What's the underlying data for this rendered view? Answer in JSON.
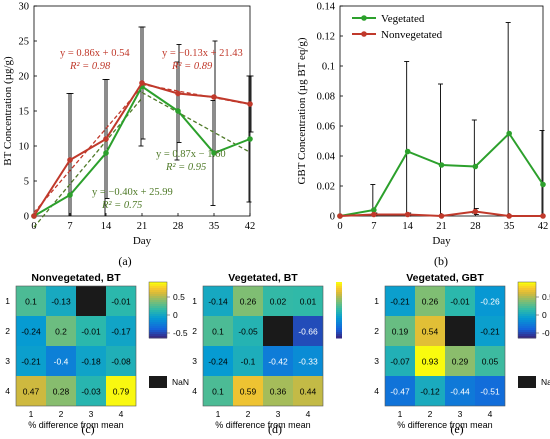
{
  "chart_data": [
    {
      "panel": "(a)",
      "type": "line",
      "xlabel": "Day",
      "ylabel": "BT Concentration (µg/g)",
      "x": [
        0,
        7,
        14,
        21,
        28,
        35,
        42
      ],
      "xlim": [
        0,
        42
      ],
      "ylim": [
        0,
        30
      ],
      "xticks": [
        "0",
        "7",
        "14",
        "21",
        "28",
        "35",
        "42"
      ],
      "yticks": [
        "0",
        "5",
        "10",
        "15",
        "20",
        "25",
        "30"
      ],
      "series": [
        {
          "color": "#2ca02c",
          "values": [
            0,
            3,
            9,
            18.5,
            15,
            9,
            11
          ],
          "err": [
            0,
            14.5,
            10.5,
            8.5,
            7,
            7.5,
            9
          ]
        },
        {
          "color": "#c0392b",
          "values": [
            0,
            8,
            11,
            19,
            17.5,
            17,
            16
          ],
          "err": [
            0,
            9.5,
            8.5,
            8,
            7,
            8,
            4
          ]
        }
      ],
      "fits": [
        {
          "color": "#c0392b",
          "x": [
            0,
            21
          ],
          "eq": "y = 0.86x + 0.54",
          "r2": "R² = 0.98"
        },
        {
          "color": "#c0392b",
          "x": [
            21,
            42
          ],
          "eq": "y = −0.13x + 21.43",
          "r2": "R² = 0.89"
        },
        {
          "color": "#4f7a28",
          "x": [
            0,
            21
          ],
          "eq": "y = 0.87x − 1.60",
          "r2": "R² = 0.95"
        },
        {
          "color": "#4f7a28",
          "x": [
            21,
            42
          ],
          "eq": "y = −0.40x + 25.99",
          "r2": "R² = 0.75"
        }
      ]
    },
    {
      "panel": "(b)",
      "type": "line",
      "xlabel": "Day",
      "ylabel": "GBT Concentration (µg BT eq/g)",
      "x": [
        0,
        7,
        14,
        21,
        28,
        35,
        42
      ],
      "xlim": [
        0,
        42
      ],
      "ylim": [
        0,
        0.14
      ],
      "xticks": [
        "0",
        "7",
        "14",
        "21",
        "28",
        "35",
        "42"
      ],
      "yticks": [
        "0",
        "0.02",
        "0.04",
        "0.06",
        "0.08",
        "0.1",
        "0.12",
        "0.14"
      ],
      "legend_position": "top-left",
      "series": [
        {
          "name": "Vegetated",
          "color": "#2ca02c",
          "values": [
            0,
            0.004,
            0.043,
            0.034,
            0.033,
            0.055,
            0.021
          ],
          "err": [
            0,
            0.017,
            0.06,
            0.054,
            0.031,
            0.074,
            0.036
          ]
        },
        {
          "name": "Nonvegetated",
          "color": "#c0392b",
          "values": [
            0,
            0.001,
            0.001,
            0,
            0.003,
            0,
            0
          ],
          "err": [
            0,
            0.001,
            0.001,
            0,
            0.002,
            0,
            0
          ]
        }
      ]
    },
    {
      "panel": "(c)",
      "type": "heatmap",
      "title": "Nonvegetated, BT",
      "xlabel": "% difference from mean",
      "rows": [
        "1",
        "2",
        "3",
        "4"
      ],
      "cols": [
        "1",
        "2",
        "3",
        "4"
      ],
      "values": [
        [
          0.1,
          -0.13,
          null,
          -0.01
        ],
        [
          -0.24,
          0.2,
          -0.01,
          -0.17
        ],
        [
          -0.21,
          -0.4,
          -0.18,
          -0.08
        ],
        [
          0.47,
          0.28,
          -0.03,
          0.79
        ]
      ],
      "labels": [
        [
          "0.1",
          "-0.13",
          "",
          "-0.01"
        ],
        [
          "-0.24",
          "0.2",
          "-0.01",
          "-0.17"
        ],
        [
          "-0.21",
          "-0.4",
          "-0.18",
          "-0.08"
        ],
        [
          "0.47",
          "0.28",
          "-0.03",
          "0.79"
        ]
      ],
      "colorbar_ticks": [
        "0.5",
        "0",
        "-0.5"
      ],
      "nan_label": "NaN"
    },
    {
      "panel": "(d)",
      "type": "heatmap",
      "title": "Vegetated, BT",
      "xlabel": "% difference from mean",
      "rows": [
        "1",
        "2",
        "3",
        "4"
      ],
      "cols": [
        "1",
        "2",
        "3",
        "4"
      ],
      "values": [
        [
          -0.14,
          0.26,
          0.02,
          0.01
        ],
        [
          0.1,
          -0.05,
          null,
          -0.66
        ],
        [
          -0.24,
          -0.1,
          -0.42,
          -0.33
        ],
        [
          0.1,
          0.59,
          0.36,
          0.44
        ]
      ],
      "labels": [
        [
          "-0.14",
          "0.26",
          "0.02",
          "0.01"
        ],
        [
          "0.1",
          "-0.05",
          "",
          "-0.66"
        ],
        [
          "-0.24",
          "-0.1",
          "-0.42",
          "-0.33"
        ],
        [
          "0.1",
          "0.59",
          "0.36",
          "0.44"
        ]
      ]
    },
    {
      "panel": "(e)",
      "type": "heatmap",
      "title": "Vegetated, GBT",
      "xlabel": "% difference from mean",
      "rows": [
        "1",
        "2",
        "3",
        "4"
      ],
      "cols": [
        "1",
        "2",
        "3",
        "4"
      ],
      "values": [
        [
          -0.21,
          0.26,
          -0.01,
          -0.26
        ],
        [
          0.19,
          0.54,
          null,
          -0.21
        ],
        [
          -0.07,
          0.93,
          0.29,
          0.05
        ],
        [
          -0.47,
          -0.12,
          -0.44,
          -0.51
        ]
      ],
      "labels": [
        [
          "-0.21",
          "0.26",
          "-0.01",
          "-0.26"
        ],
        [
          "0.19",
          "0.54",
          "",
          "-0.21"
        ],
        [
          "-0.07",
          "0.93",
          "0.29",
          "0.05"
        ],
        [
          "-0.47",
          "-0.12",
          "-0.44",
          "-0.51"
        ]
      ],
      "colorbar_ticks": [
        "0.5",
        "0",
        "-0.5"
      ],
      "nan_label": "NaN"
    }
  ]
}
